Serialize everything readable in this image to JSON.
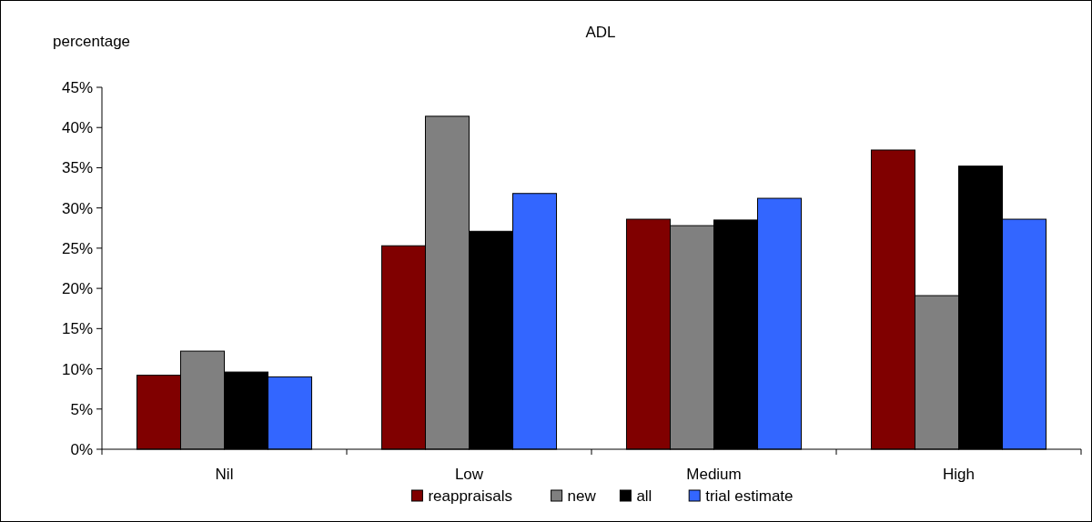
{
  "chart_data": {
    "type": "bar",
    "title": "ADL",
    "ylabel": "percentage",
    "categories": [
      "Nil",
      "Low",
      "Medium",
      "High"
    ],
    "series": [
      {
        "name": "reappraisals",
        "color": "#800000",
        "values": [
          9.2,
          25.3,
          28.6,
          37.2
        ]
      },
      {
        "name": "new",
        "color": "#808080",
        "values": [
          12.2,
          41.4,
          27.8,
          19.1
        ]
      },
      {
        "name": "all",
        "color": "#000000",
        "values": [
          9.6,
          27.1,
          28.5,
          35.2
        ]
      },
      {
        "name": "trial estimate",
        "color": "#3366ff",
        "values": [
          9.0,
          31.8,
          31.2,
          28.6
        ]
      }
    ],
    "ylim": [
      0,
      45
    ],
    "yticks": [
      {
        "value": 0,
        "label": "0%"
      },
      {
        "value": 5,
        "label": "5%"
      },
      {
        "value": 10,
        "label": "10%"
      },
      {
        "value": 15,
        "label": "15%"
      },
      {
        "value": 20,
        "label": "20%"
      },
      {
        "value": 25,
        "label": "25%"
      },
      {
        "value": 30,
        "label": "30%"
      },
      {
        "value": 35,
        "label": "35%"
      },
      {
        "value": 40,
        "label": "40%"
      },
      {
        "value": 45,
        "label": "45%"
      }
    ],
    "grid": false,
    "legend": "bottom"
  }
}
